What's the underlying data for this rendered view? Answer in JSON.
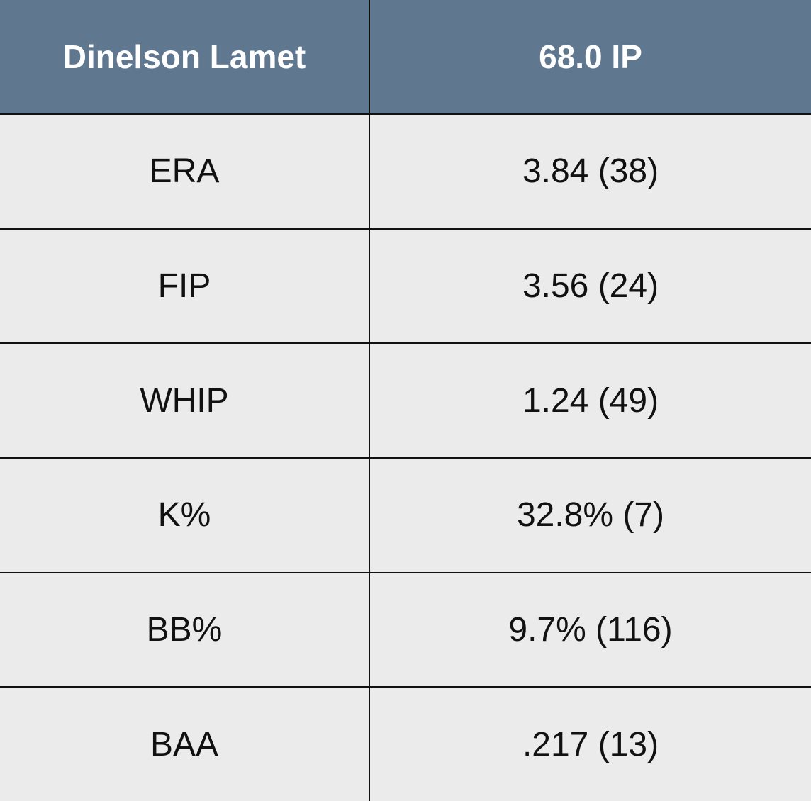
{
  "table": {
    "header": [
      "Dinelson Lamet",
      "68.0 IP"
    ],
    "rows": [
      [
        "ERA",
        "3.84 (38)"
      ],
      [
        "FIP",
        "3.56 (24)"
      ],
      [
        "WHIP",
        "1.24 (49)"
      ],
      [
        "K%",
        "32.8% (7)"
      ],
      [
        "BB%",
        "9.7% (116)"
      ],
      [
        "BAA",
        ".217 (13)"
      ]
    ]
  }
}
